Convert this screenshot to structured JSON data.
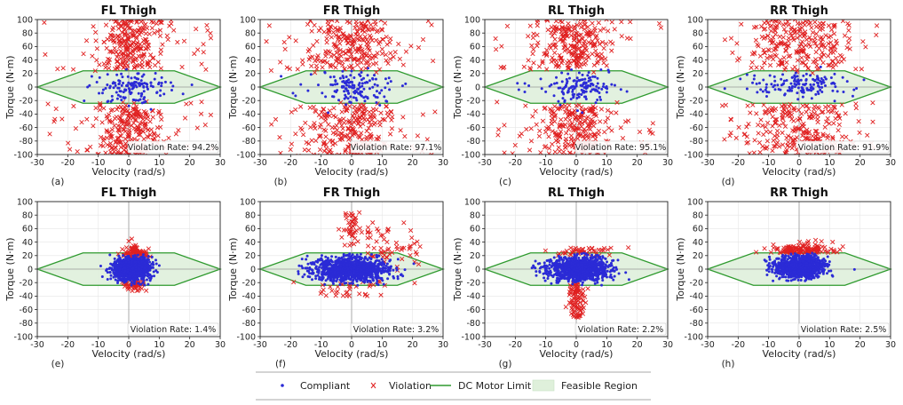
{
  "chart_data": [
    {
      "type": "scatter",
      "title": "FL Thigh",
      "subplot_label": "(a)",
      "violation_rate": "Violation Rate: 94.2%",
      "xlabel": "Velocity (rad/s)",
      "ylabel": "Torque (N·m)",
      "xlim": [
        -30,
        30
      ],
      "ylim": [
        -100,
        100
      ],
      "xticks": [
        -30,
        -20,
        -10,
        0,
        10,
        20,
        30
      ],
      "yticks": [
        -100,
        -80,
        -60,
        -40,
        -20,
        0,
        20,
        40,
        60,
        80,
        100
      ],
      "pattern": "high-spread",
      "compliant_center": [
        1,
        0
      ],
      "compliant_spread": [
        6,
        12
      ],
      "violation_center": [
        0,
        0
      ],
      "violation_spread": [
        5,
        60
      ]
    },
    {
      "type": "scatter",
      "title": "FR Thigh",
      "subplot_label": "(b)",
      "violation_rate": "Violation Rate: 97.1%",
      "xlabel": "Velocity (rad/s)",
      "ylabel": "Torque (N·m)",
      "xlim": [
        -30,
        30
      ],
      "ylim": [
        -100,
        100
      ],
      "xticks": [
        -30,
        -20,
        -10,
        0,
        10,
        20,
        30
      ],
      "yticks": [
        -100,
        -80,
        -60,
        -40,
        -20,
        0,
        20,
        40,
        60,
        80,
        100
      ],
      "pattern": "high-spread",
      "compliant_center": [
        0,
        0
      ],
      "compliant_spread": [
        7,
        12
      ],
      "violation_center": [
        0,
        0
      ],
      "violation_spread": [
        7,
        60
      ]
    },
    {
      "type": "scatter",
      "title": "RL Thigh",
      "subplot_label": "(c)",
      "violation_rate": "Violation Rate: 95.1%",
      "xlabel": "Velocity (rad/s)",
      "ylabel": "Torque (N·m)",
      "xlim": [
        -30,
        30
      ],
      "ylim": [
        -100,
        100
      ],
      "xticks": [
        -30,
        -20,
        -10,
        0,
        10,
        20,
        30
      ],
      "yticks": [
        -100,
        -80,
        -60,
        -40,
        -20,
        0,
        20,
        40,
        60,
        80,
        100
      ],
      "pattern": "high-spread",
      "compliant_center": [
        0,
        0
      ],
      "compliant_spread": [
        6,
        12
      ],
      "violation_center": [
        0,
        0
      ],
      "violation_spread": [
        6,
        60
      ]
    },
    {
      "type": "scatter",
      "title": "RR Thigh",
      "subplot_label": "(d)",
      "violation_rate": "Violation Rate: 91.9%",
      "xlabel": "Velocity (rad/s)",
      "ylabel": "Torque (N·m)",
      "xlim": [
        -30,
        30
      ],
      "ylim": [
        -100,
        100
      ],
      "xticks": [
        -30,
        -20,
        -10,
        0,
        10,
        20,
        30
      ],
      "yticks": [
        -100,
        -80,
        -60,
        -40,
        -20,
        0,
        20,
        40,
        60,
        80,
        100
      ],
      "pattern": "high-spread",
      "compliant_center": [
        0,
        2
      ],
      "compliant_spread": [
        9,
        10
      ],
      "violation_center": [
        0,
        0
      ],
      "violation_spread": [
        9,
        60
      ]
    },
    {
      "type": "scatter",
      "title": "FL Thigh",
      "subplot_label": "(e)",
      "violation_rate": "Violation Rate: 1.4%",
      "xlabel": "Velocity (rad/s)",
      "ylabel": "Torque (N·m)",
      "xlim": [
        -30,
        30
      ],
      "ylim": [
        -100,
        100
      ],
      "xticks": [
        -30,
        -20,
        -10,
        0,
        10,
        20,
        30
      ],
      "yticks": [
        -100,
        -80,
        -60,
        -40,
        -20,
        0,
        20,
        40,
        60,
        80,
        100
      ],
      "pattern": "low-edge",
      "compliant_center": [
        1,
        0
      ],
      "compliant_spread": [
        3,
        8
      ],
      "violation_center": [
        2,
        0
      ],
      "violation_spread": [
        2,
        30
      ]
    },
    {
      "type": "scatter",
      "title": "FR Thigh",
      "subplot_label": "(f)",
      "violation_rate": "Violation Rate: 3.2%",
      "xlabel": "Velocity (rad/s)",
      "ylabel": "Torque (N·m)",
      "xlim": [
        -30,
        30
      ],
      "ylim": [
        -100,
        100
      ],
      "xticks": [
        -30,
        -20,
        -10,
        0,
        10,
        20,
        30
      ],
      "yticks": [
        -100,
        -80,
        -60,
        -40,
        -20,
        0,
        20,
        40,
        60,
        80,
        100
      ],
      "pattern": "low-plume",
      "compliant_center": [
        0,
        0
      ],
      "compliant_spread": [
        6,
        9
      ],
      "violation_center": [
        5,
        35
      ],
      "violation_spread": [
        5,
        25
      ]
    },
    {
      "type": "scatter",
      "title": "RL Thigh",
      "subplot_label": "(g)",
      "violation_rate": "Violation Rate: 2.2%",
      "xlabel": "Velocity (rad/s)",
      "ylabel": "Torque (N·m)",
      "xlim": [
        -30,
        30
      ],
      "ylim": [
        -100,
        100
      ],
      "xticks": [
        -30,
        -20,
        -10,
        0,
        10,
        20,
        30
      ],
      "yticks": [
        -100,
        -80,
        -60,
        -40,
        -20,
        0,
        20,
        40,
        60,
        80,
        100
      ],
      "pattern": "low-down",
      "compliant_center": [
        1,
        0
      ],
      "compliant_spread": [
        5,
        9
      ],
      "violation_center": [
        0,
        -40
      ],
      "violation_spread": [
        1.5,
        20
      ]
    },
    {
      "type": "scatter",
      "title": "RR Thigh",
      "subplot_label": "(h)",
      "violation_rate": "Violation Rate: 2.5%",
      "xlabel": "Velocity (rad/s)",
      "ylabel": "Torque (N·m)",
      "xlim": [
        -30,
        30
      ],
      "ylim": [
        -100,
        100
      ],
      "xticks": [
        -30,
        -20,
        -10,
        0,
        10,
        20,
        30
      ],
      "yticks": [
        -100,
        -80,
        -60,
        -40,
        -20,
        0,
        20,
        40,
        60,
        80,
        100
      ],
      "pattern": "low-up",
      "compliant_center": [
        0,
        3
      ],
      "compliant_spread": [
        4,
        8
      ],
      "violation_center": [
        1,
        32
      ],
      "violation_spread": [
        5,
        8
      ]
    }
  ],
  "motor_limit_polygon": [
    [
      -30,
      0
    ],
    [
      -15,
      24
    ],
    [
      15,
      24
    ],
    [
      30,
      0
    ],
    [
      15,
      -24
    ],
    [
      -15,
      -24
    ]
  ],
  "legend": {
    "compliant": "Compliant",
    "violation": "Violation",
    "motor_limit": "DC Motor Limit",
    "feasible_region": "Feasible Region"
  },
  "colors": {
    "compliant": "#2b2bd6",
    "violation": "#e02020",
    "motor_limit": "#2e9a2e",
    "feasible_fill": "#dff0db",
    "zero_line": "#999999",
    "grid": "#e6e6e6"
  }
}
